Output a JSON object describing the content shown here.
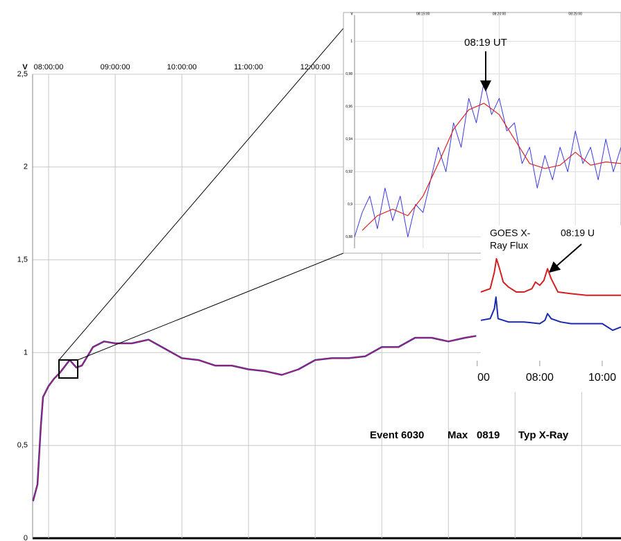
{
  "chart_data": [
    {
      "type": "line",
      "y_label": "V",
      "xlim": [
        "07:45:37",
        "16:35:24"
      ],
      "xticks": [
        "08:00:00",
        "09:00:00",
        "10:00:00",
        "11:00:00",
        "12:00:00",
        {
          "value": "13:00:00",
          "label": null
        },
        {
          "value": "14:00:00",
          "label": null
        },
        {
          "value": "15:00:00",
          "label": null
        },
        {
          "value": "16:00:00",
          "label": null
        }
      ],
      "ylim": [
        0,
        2.5
      ],
      "yticks": [
        0,
        {
          "value": 0.5,
          "label": "0,5"
        },
        1,
        {
          "value": 1.5,
          "label": "1,5"
        },
        2,
        {
          "value": 2.5,
          "label": "2,5"
        }
      ],
      "grid": true,
      "series": [
        {
          "color": "#2a2ad0",
          "smooth_color": "#e02020",
          "x": [
            "07:46",
            "07:50",
            "07:53",
            "07:55",
            "08:00",
            "08:05",
            "08:10",
            "08:19",
            "08:25",
            "08:30",
            "08:40",
            "08:50",
            "09:00",
            "09:15",
            "09:30",
            "09:45",
            "10:00",
            "10:15",
            "10:30",
            "10:45",
            "11:00",
            "11:15",
            "11:30",
            "11:45",
            "12:00",
            "12:15",
            "12:30",
            "12:45",
            "13:00",
            "13:15",
            "13:30",
            "13:45",
            "14:00",
            "14:15",
            "14:25"
          ],
          "values": [
            0.2,
            0.29,
            0.6,
            0.76,
            0.82,
            0.86,
            0.89,
            0.96,
            0.92,
            0.93,
            1.03,
            1.06,
            1.05,
            1.05,
            1.07,
            1.02,
            0.97,
            0.96,
            0.93,
            0.93,
            0.91,
            0.9,
            0.88,
            0.91,
            0.96,
            0.97,
            0.97,
            0.98,
            1.03,
            1.03,
            1.08,
            1.08,
            1.06,
            1.08,
            1.09
          ]
        }
      ],
      "annotations": [
        "Event 6030",
        "Max",
        "0819",
        "Typ X-Ray"
      ]
    },
    {
      "type": "line",
      "y_label": "v",
      "xlim": [
        "08:10:30",
        "08:28:00"
      ],
      "xticks": [
        "08:15:00",
        "08:20:00",
        "08:25:00"
      ],
      "ylim": [
        0.873,
        1.016
      ],
      "yticks": [
        {
          "value": 0.88,
          "label": "0,88"
        },
        {
          "value": 0.9,
          "label": "0,9"
        },
        {
          "value": 0.92,
          "label": "0,92"
        },
        {
          "value": 0.94,
          "label": "0,94"
        },
        {
          "value": 0.96,
          "label": "0,96"
        },
        {
          "value": 0.98,
          "label": "0,98"
        },
        1
      ],
      "grid": true,
      "annotation": "08:19 UT",
      "series": [
        {
          "color": "#3a3ae0",
          "x": [
            "08:10:30",
            "08:11:00",
            "08:11:30",
            "08:12:00",
            "08:12:30",
            "08:13:00",
            "08:13:30",
            "08:14:00",
            "08:14:30",
            "08:15:00",
            "08:15:30",
            "08:16:00",
            "08:16:30",
            "08:17:00",
            "08:17:30",
            "08:18:00",
            "08:18:30",
            "08:19:00",
            "08:19:30",
            "08:20:00",
            "08:20:30",
            "08:21:00",
            "08:21:30",
            "08:22:00",
            "08:22:30",
            "08:23:00",
            "08:23:30",
            "08:24:00",
            "08:24:30",
            "08:25:00",
            "08:25:30",
            "08:26:00",
            "08:26:30",
            "08:27:00",
            "08:27:30",
            "08:28:00"
          ],
          "values": [
            0.88,
            0.895,
            0.905,
            0.885,
            0.91,
            0.89,
            0.905,
            0.88,
            0.9,
            0.895,
            0.915,
            0.935,
            0.92,
            0.95,
            0.935,
            0.965,
            0.95,
            0.975,
            0.955,
            0.965,
            0.945,
            0.95,
            0.925,
            0.935,
            0.91,
            0.93,
            0.915,
            0.935,
            0.92,
            0.945,
            0.925,
            0.935,
            0.915,
            0.94,
            0.92,
            0.935
          ]
        },
        {
          "color": "#e02020",
          "x": [
            "08:11",
            "08:12",
            "08:13",
            "08:14",
            "08:15",
            "08:16",
            "08:17",
            "08:18",
            "08:19",
            "08:20",
            "08:21",
            "08:22",
            "08:23",
            "08:24",
            "08:25",
            "08:26",
            "08:27",
            "08:28"
          ],
          "values": [
            0.884,
            0.893,
            0.897,
            0.893,
            0.905,
            0.925,
            0.946,
            0.958,
            0.962,
            0.955,
            0.94,
            0.925,
            0.922,
            0.924,
            0.932,
            0.924,
            0.926,
            0.925
          ]
        }
      ]
    },
    {
      "type": "line",
      "title_lines": [
        "GOES X-",
        "Ray Flux"
      ],
      "annotation": "08:19 U",
      "xlim": [
        "06:07",
        "10:36"
      ],
      "ylim": [
        0,
        100
      ],
      "xticks": [
        {
          "value": "06:00",
          "label": "00"
        },
        "08:00",
        "10:00"
      ],
      "series": [
        {
          "color": "#d42020",
          "x": [
            "06:07",
            "06:25",
            "06:33",
            "06:37",
            "06:42",
            "06:50",
            "07:00",
            "07:15",
            "07:30",
            "07:45",
            "07:52",
            "08:00",
            "08:08",
            "08:15",
            "08:22",
            "08:35",
            "09:00",
            "09:30",
            "10:00",
            "10:36"
          ],
          "values": [
            60,
            62,
            72,
            80,
            75,
            66,
            63,
            60,
            60,
            62,
            66,
            64,
            67,
            74,
            68,
            60,
            59,
            58,
            58,
            58
          ]
        },
        {
          "color": "#1a2ab0",
          "x": [
            "06:07",
            "06:25",
            "06:33",
            "06:36",
            "06:40",
            "07:00",
            "07:30",
            "08:00",
            "08:10",
            "08:15",
            "08:22",
            "08:40",
            "09:00",
            "09:30",
            "10:00",
            "10:20",
            "10:36"
          ],
          "values": [
            43,
            44,
            50,
            57,
            44,
            42,
            42,
            41,
            43,
            47,
            44,
            42,
            41,
            41,
            41,
            37,
            39
          ]
        }
      ]
    }
  ]
}
